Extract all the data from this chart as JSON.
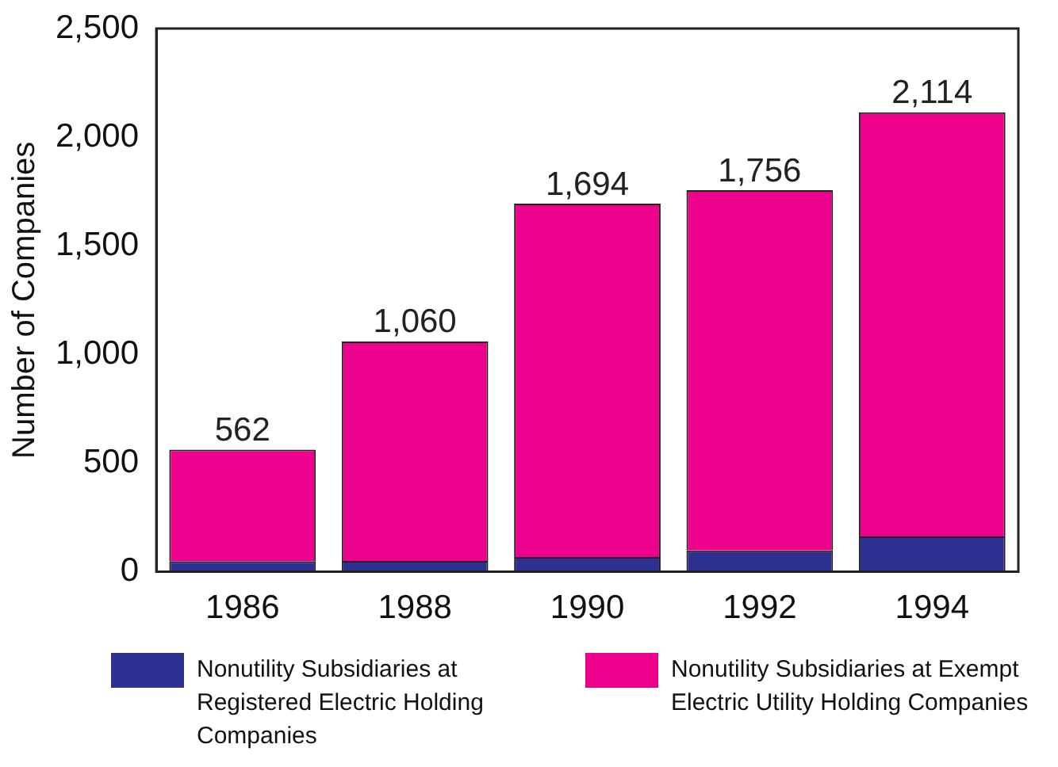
{
  "chart_data": {
    "type": "bar",
    "stacked": true,
    "ylabel": "Number of Companies",
    "categories": [
      "1986",
      "1988",
      "1990",
      "1992",
      "1994"
    ],
    "series": [
      {
        "name": "Nonutility Subsidiaries at Registered Electric Holding Companies",
        "color": "#2e3192",
        "values": [
          49,
          50,
          68,
          98,
          163
        ]
      },
      {
        "name": "Nonutility Subsidiaries at Exempt Electric Utility Holding Companies",
        "color": "#ec008c",
        "values": [
          513,
          1010,
          1626,
          1658,
          1951
        ]
      }
    ],
    "totals": [
      "562",
      "1,060",
      "1,694",
      "1,756",
      "2,114"
    ],
    "ylim": [
      0,
      2500
    ],
    "yticks": [
      {
        "value": 0,
        "label": "0"
      },
      {
        "value": 500,
        "label": "500"
      },
      {
        "value": 1000,
        "label": "1,000"
      },
      {
        "value": 1500,
        "label": "1,500"
      },
      {
        "value": 2000,
        "label": "2,000"
      },
      {
        "value": 2500,
        "label": "2,500"
      }
    ],
    "grid": false,
    "legend": "bottom"
  }
}
